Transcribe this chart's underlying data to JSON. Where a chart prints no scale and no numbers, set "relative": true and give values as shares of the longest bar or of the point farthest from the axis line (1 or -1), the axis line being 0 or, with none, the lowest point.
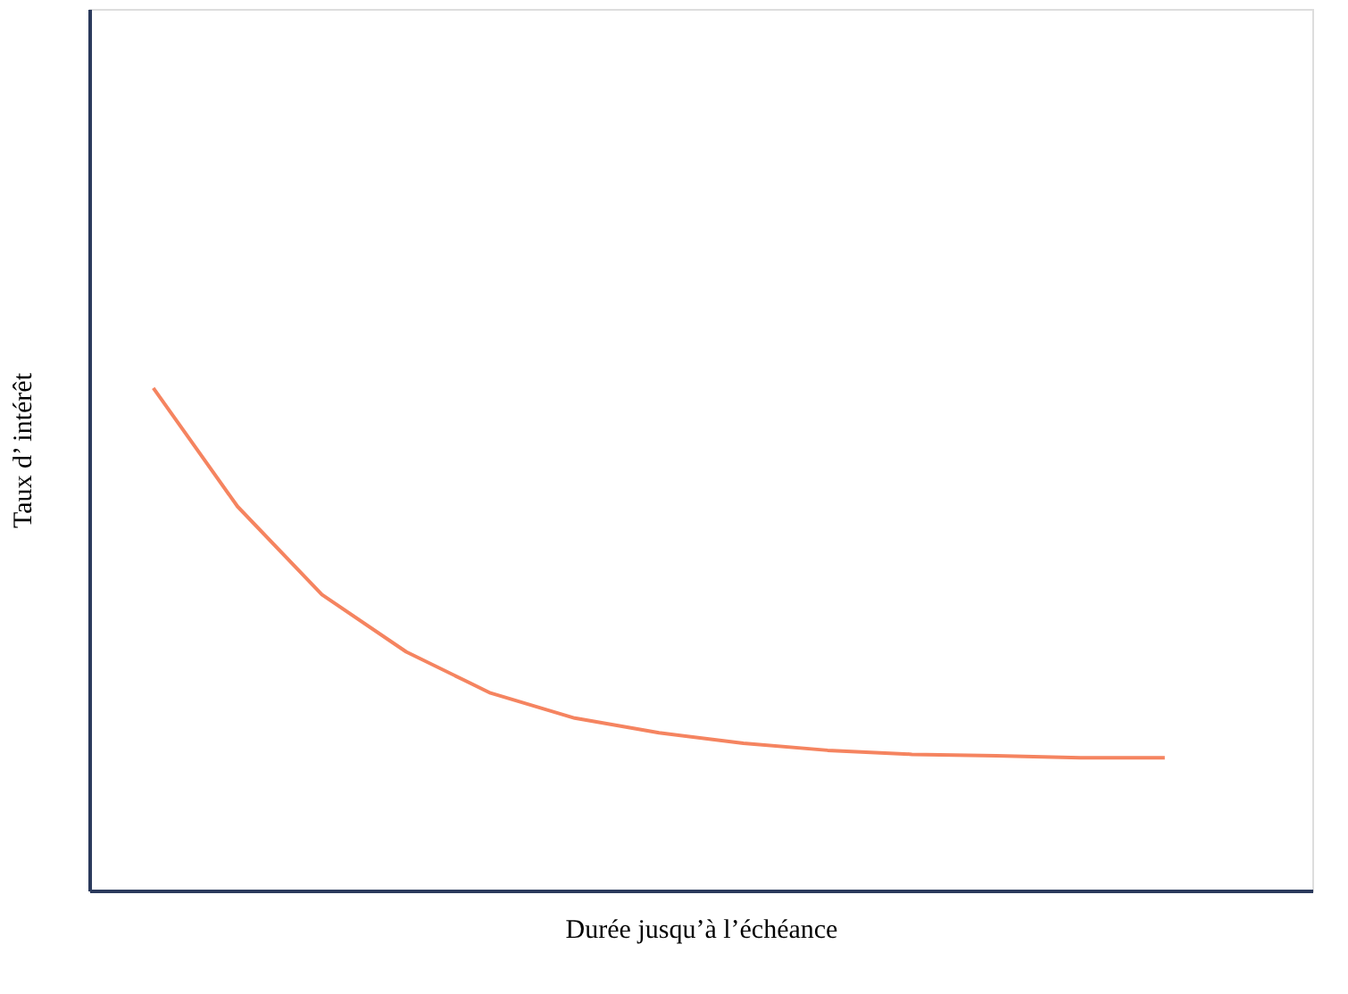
{
  "chart_data": {
    "type": "line",
    "relative": true,
    "xlabel": "Durée jusqu’à l’échéance",
    "ylabel": "Taux d’  intérêt",
    "categories": [
      null,
      null,
      null,
      null,
      null,
      null,
      null,
      null,
      null,
      null,
      null,
      null,
      null
    ],
    "series": [
      {
        "color": "#f58460",
        "values": [
          1,
          0.764,
          0.589,
          0.475,
          0.393,
          0.343,
          0.314,
          0.293,
          0.279,
          0.271,
          0.268,
          0.264,
          0.264
        ]
      }
    ],
    "grid": false,
    "legend": false,
    "marker": "none",
    "line_style": "solid"
  }
}
